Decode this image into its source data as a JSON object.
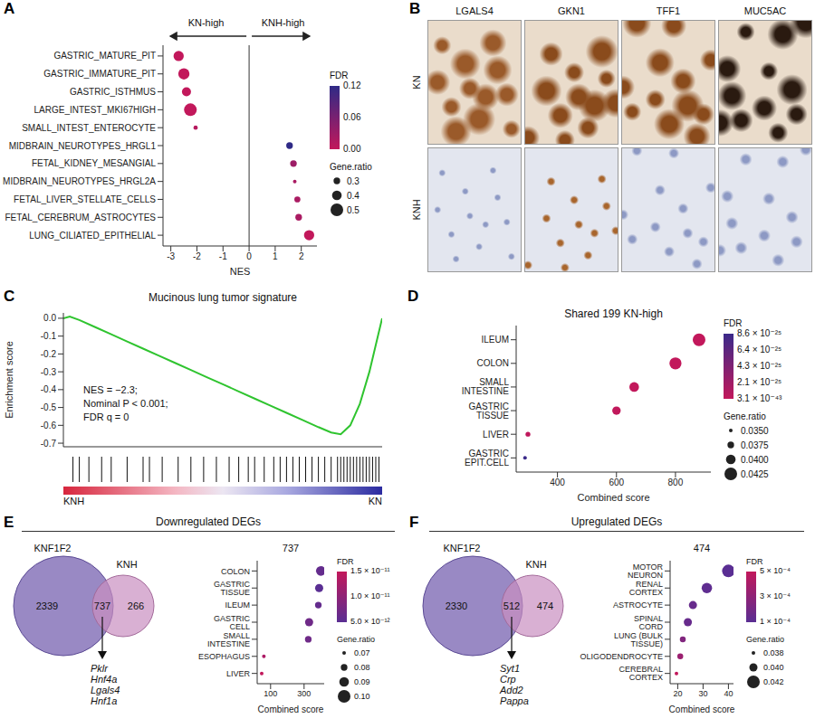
{
  "chart_data": [
    {
      "panel": "A",
      "type": "dot",
      "header_left": "KN-high",
      "header_right": "KNH-high",
      "categories": [
        "GASTRIC_MATURE_PIT",
        "GASTRIC_IMMATURE_PIT",
        "GASTRIC_ISTHMUS",
        "LARGE_INTEST_MKI67HIGH",
        "SMALL_INTEST_ENTEROCYTE",
        "MIDBRAIN_NEUROTYPES_HRGL1",
        "FETAL_KIDNEY_MESANGIAL",
        "MIDBRAIN_NEUROTYPES_HRGL2A",
        "FETAL_LIVER_STELLATE_CELLS",
        "FETAL_CEREBRUM_ASTROCYTES",
        "LUNG_CILIATED_EPITHELIAL"
      ],
      "values": [
        -2.7,
        -2.5,
        -2.4,
        -2.25,
        -2.05,
        1.55,
        1.7,
        1.75,
        1.85,
        1.9,
        2.3
      ],
      "fdr": [
        0,
        0,
        0,
        0,
        0.01,
        0.12,
        0.03,
        0.02,
        0.02,
        0.02,
        0
      ],
      "gene_ratio": [
        0.42,
        0.45,
        0.38,
        0.5,
        0.22,
        0.3,
        0.3,
        0.2,
        0.28,
        0.3,
        0.42
      ],
      "x_label": "NES",
      "xlim": [
        -3.3,
        2.6
      ],
      "xticks": [
        -3,
        -2,
        -1,
        0,
        1,
        2
      ],
      "reference_line": 0,
      "fdr_colorbar": {
        "title": "FDR",
        "range": [
          0,
          0.12
        ],
        "ticks": [
          {
            "value": 0.12,
            "label": "0.12"
          },
          {
            "value": 0.06,
            "label": "0.06"
          },
          {
            "value": 0,
            "label": "0.00"
          }
        ],
        "colors": [
          "#c2185b",
          "#2f2a86"
        ]
      },
      "gene_ratio_legend": {
        "title": "Gene.ratio",
        "ticks": [
          0.3,
          0.4,
          0.5
        ]
      }
    },
    {
      "panel": "C",
      "type": "line",
      "title": "Mucinous lung tumor signature",
      "y_label": "Enrichment score",
      "x": [
        0,
        2,
        5,
        10,
        15,
        20,
        25,
        30,
        35,
        40,
        45,
        50,
        55,
        60,
        65,
        70,
        75,
        80,
        84,
        87,
        90,
        93,
        96,
        98,
        100
      ],
      "values": [
        0,
        0.01,
        -0.01,
        -0.05,
        -0.09,
        -0.13,
        -0.17,
        -0.21,
        -0.25,
        -0.29,
        -0.33,
        -0.37,
        -0.41,
        -0.45,
        -0.49,
        -0.53,
        -0.57,
        -0.61,
        -0.64,
        -0.65,
        -0.6,
        -0.48,
        -0.3,
        -0.15,
        0
      ],
      "color": "#2fc42f",
      "xlim": [
        0,
        100
      ],
      "ylim": [
        -0.72,
        0.03
      ],
      "yticks": [
        {
          "value": 0,
          "label": "0.0"
        },
        -0.1,
        -0.2,
        -0.3,
        -0.4,
        -0.5,
        -0.6,
        -0.7
      ],
      "tick_labels": "y",
      "annotations": [
        "NES = −2.3;",
        "Nominal P < 0.001;",
        "FDR q = 0"
      ],
      "hits": [
        3,
        5,
        8,
        12,
        15,
        20,
        25,
        27,
        31,
        36,
        40,
        44,
        48,
        52,
        55,
        58,
        60,
        63,
        66,
        68,
        70,
        72,
        74,
        76,
        78,
        80,
        82,
        84,
        86,
        87,
        88,
        89,
        90,
        91,
        92,
        93,
        94,
        95,
        96,
        97,
        98,
        99
      ],
      "x_end_labels": [
        "KNH",
        "KN"
      ]
    },
    {
      "panel": "D",
      "type": "dot",
      "title": "Shared 199 KN-high",
      "categories": [
        "ILEUM",
        "COLON",
        "SMALL INTESTINE",
        "GASTRIC TISSUE",
        "LIVER",
        "GASTRIC EPIT.CELL"
      ],
      "values": [
        880,
        800,
        660,
        600,
        300,
        290
      ],
      "fdr": [
        3.1e-43,
        1e-30,
        1e-27,
        5e-27,
        2e-26,
        8.6e-25
      ],
      "gene_ratio": [
        0.0425,
        0.042,
        0.04,
        0.039,
        0.036,
        0.035
      ],
      "x_label": "Combined score",
      "xlim": [
        260,
        920
      ],
      "xticks": [
        400,
        600,
        800
      ],
      "fdr_colorbar": {
        "title": "FDR",
        "range": [
          3.1e-43,
          8.6e-25
        ],
        "ticks": [
          {
            "value": 8.6e-25,
            "label": "8.6 × 10⁻²⁵"
          },
          {
            "value": 6.4e-25,
            "label": "6.4 × 10⁻²⁵"
          },
          {
            "value": 4.3e-25,
            "label": "4.3 × 10⁻²⁵"
          },
          {
            "value": 2.1e-25,
            "label": "2.1 × 10⁻²⁵"
          },
          {
            "value": 3.1e-43,
            "label": "3.1 × 10⁻⁴³"
          }
        ],
        "colors": [
          "#c2185b",
          "#3b2a8a"
        ]
      },
      "gene_ratio_legend": {
        "title": "Gene.ratio",
        "ticks": [
          {
            "value": 0.035,
            "label": "0.0350"
          },
          {
            "value": 0.0375,
            "label": "0.0375"
          },
          {
            "value": 0.04,
            "label": "0.0400"
          },
          {
            "value": 0.0425,
            "label": "0.0425"
          }
        ]
      }
    },
    {
      "panel": "E",
      "type": "dot",
      "title": "737",
      "categories": [
        "COLON",
        "GASTRIC TISSUE",
        "ILEUM",
        "GASTRIC CELL",
        "SMALL INTESTINE",
        "ESOPHAGUS",
        "LIVER"
      ],
      "values": [
        400,
        390,
        385,
        330,
        325,
        60,
        47
      ],
      "fdr": [
        6e-12,
        5e-12,
        6e-12,
        7e-12,
        7e-12,
        1.3e-11,
        1.5e-11
      ],
      "gene_ratio": [
        0.09,
        0.085,
        0.08,
        0.085,
        0.08,
        0.07,
        0.07
      ],
      "x_label": "Combined score",
      "xlim": [
        20,
        420
      ],
      "xticks": [
        100,
        300
      ],
      "fdr_colorbar": {
        "title": "FDR",
        "range": [
          5e-12,
          1.5e-11
        ],
        "ticks": [
          {
            "value": 1.5e-11,
            "label": "1.5 × 10⁻¹¹"
          },
          {
            "value": 1e-11,
            "label": "1.0 × 10⁻¹¹"
          },
          {
            "value": 5e-12,
            "label": "5.0 × 10⁻¹²"
          }
        ],
        "colors": [
          "#5a2e93",
          "#c2185b"
        ]
      },
      "gene_ratio_legend": {
        "title": "Gene.ratio",
        "ticks": [
          0.07,
          0.08,
          0.09,
          {
            "value": 0.1,
            "label": "0.10"
          }
        ]
      }
    },
    {
      "panel": "F",
      "type": "dot",
      "title": "474",
      "categories": [
        "MOTOR NEURON",
        "RENAL CORTEX",
        "ASTROCYTE",
        "SPINAL CORD",
        "LUNG (BULK TISSUE)",
        "OLIGODENDROCYTE",
        "CEREBRAL CORTEX"
      ],
      "values": [
        40,
        31.5,
        26,
        24,
        22,
        21,
        19.5
      ],
      "fdr": [
        0.0001,
        0.00012,
        0.00015,
        0.00015,
        0.00025,
        0.00035,
        0.0005
      ],
      "gene_ratio": [
        0.042,
        0.041,
        0.04,
        0.04,
        0.039,
        0.039,
        0.038
      ],
      "x_label": "Combined score",
      "xlim": [
        17,
        42
      ],
      "xticks": [
        20,
        30,
        40
      ],
      "fdr_colorbar": {
        "title": "FDR",
        "range": [
          0.0001,
          0.0005
        ],
        "ticks": [
          {
            "value": 0.0005,
            "label": "5 × 10⁻⁴"
          },
          {
            "value": 0.0003,
            "label": "3 × 10⁻⁴"
          },
          {
            "value": 0.0001,
            "label": "1 × 10⁻⁴"
          }
        ],
        "colors": [
          "#5a2e93",
          "#c2185b"
        ]
      },
      "gene_ratio_legend": {
        "title": "Gene.ratio",
        "ticks": [
          0.038,
          {
            "value": 0.04,
            "label": "0.040"
          },
          0.042
        ]
      }
    }
  ],
  "image_panel": {
    "panel": "B",
    "columns": [
      "LGALS4",
      "GKN1",
      "TFF1",
      "MUC5AC"
    ],
    "rows": [
      "KN",
      "KNH"
    ]
  },
  "venn_panels": [
    {
      "panel": "E",
      "heading": "Downregulated DEGs",
      "sets": [
        {
          "name": "KNF1F2",
          "count": 2339
        },
        {
          "name": "KNH",
          "count": 266
        }
      ],
      "overlap": 737,
      "genes": [
        "Pklr",
        "Hnf4a",
        "Lgals4",
        "Hnf1a"
      ]
    },
    {
      "panel": "F",
      "heading": "Upregulated DEGs",
      "sets": [
        {
          "name": "KNF1F2",
          "count": 2330
        },
        {
          "name": "KNH",
          "count": 474
        }
      ],
      "overlap": 512,
      "genes": [
        "Syt1",
        "Crp",
        "Add2",
        "Pappa"
      ]
    }
  ]
}
